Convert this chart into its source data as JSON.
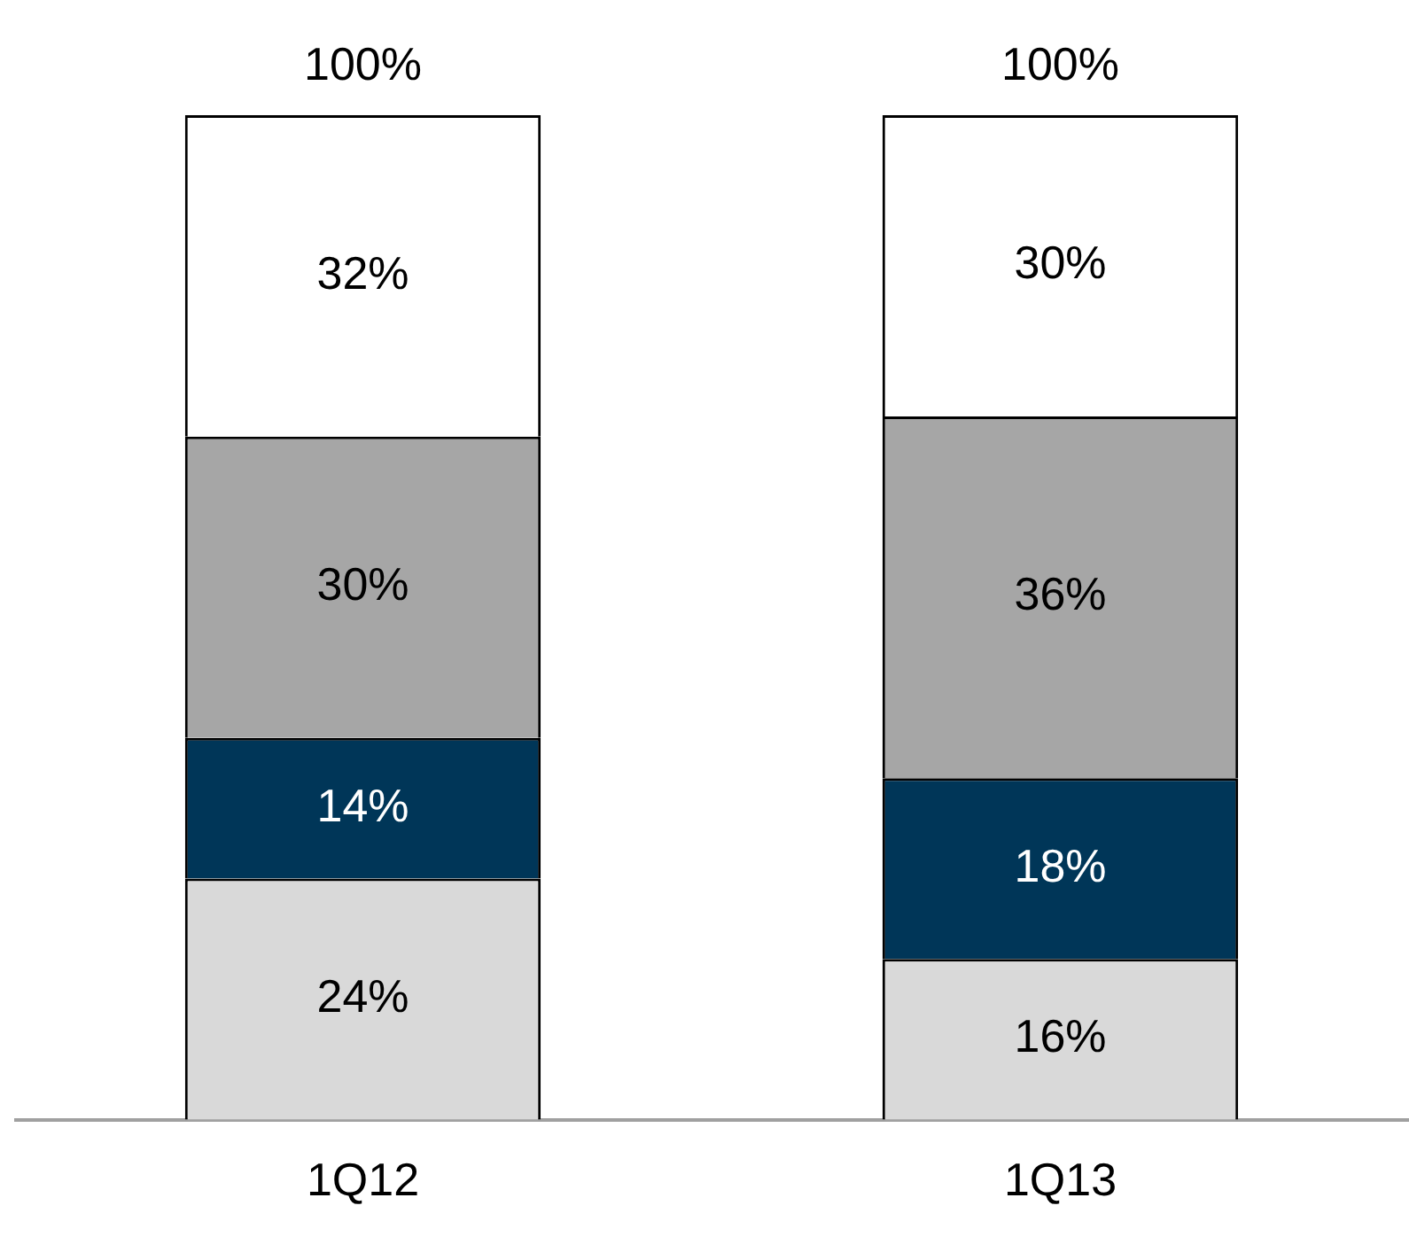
{
  "chart_data": {
    "type": "bar",
    "stacked": true,
    "categories": [
      "1Q12",
      "1Q13"
    ],
    "series": [
      {
        "color": "#d9d9d9",
        "values": [
          24,
          16
        ],
        "value_labels": [
          "24%",
          "16%"
        ]
      },
      {
        "color": "#003658",
        "values": [
          14,
          18
        ],
        "value_labels": [
          "14%",
          "18%"
        ]
      },
      {
        "color": "#a6a6a6",
        "values": [
          30,
          36
        ],
        "value_labels": [
          "30%",
          "36%"
        ]
      },
      {
        "color": "#ffffff",
        "values": [
          32,
          30
        ],
        "value_labels": [
          "32%",
          "30%"
        ]
      }
    ],
    "totals": [
      "100%",
      "100%"
    ],
    "grid": false,
    "legend": false
  }
}
